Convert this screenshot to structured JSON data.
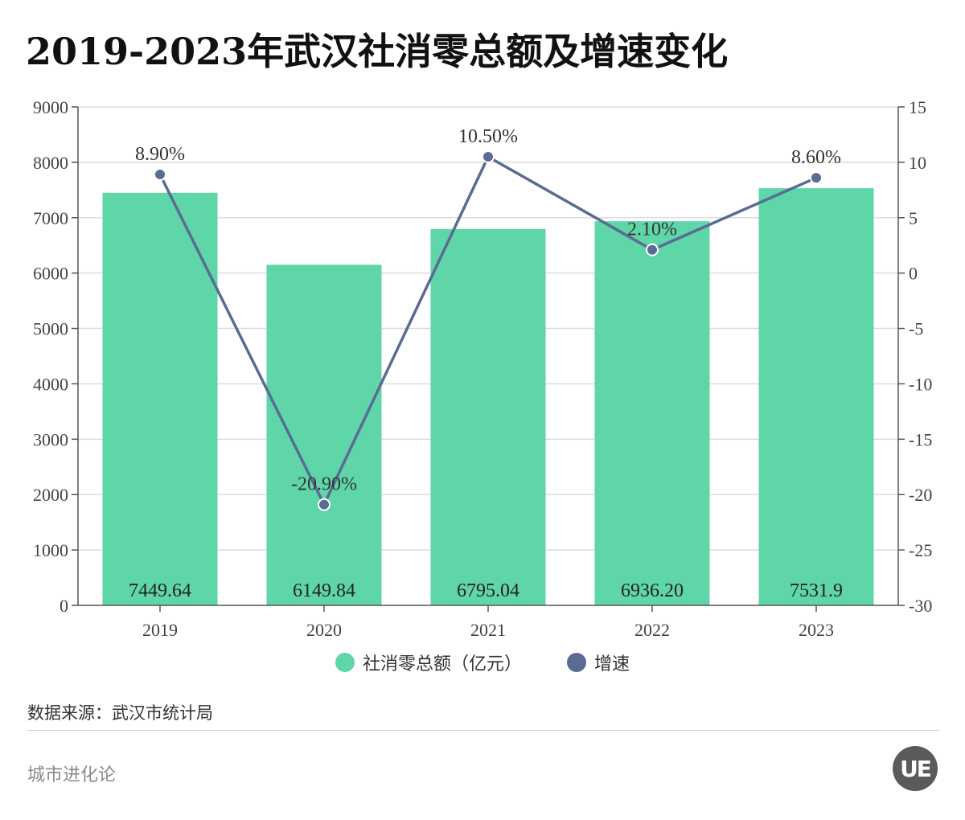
{
  "title": "2019-2023年武汉社消零总额及增速变化",
  "source": "数据来源：武汉市统计局",
  "brand": "城市进化论",
  "logo_text": "UE",
  "chart_data": {
    "type": "bar",
    "categories": [
      "2019",
      "2020",
      "2021",
      "2022",
      "2023"
    ],
    "series": [
      {
        "name": "社消零总额（亿元）",
        "type": "bar",
        "axis": "left",
        "color": "#5ed6a8",
        "values": [
          7449.64,
          6149.84,
          6795.04,
          6936.2,
          7531.9
        ],
        "labels": [
          "7449.64",
          "6149.84",
          "6795.04",
          "6936.20",
          "7531.9"
        ]
      },
      {
        "name": "增速",
        "type": "line",
        "axis": "right",
        "color": "#5a6b94",
        "values": [
          8.9,
          -20.9,
          10.5,
          2.1,
          8.6
        ],
        "labels": [
          "8.90%",
          "-20.90%",
          "10.50%",
          "2.10%",
          "8.60%"
        ]
      }
    ],
    "y_left": {
      "min": 0,
      "max": 9000,
      "ticks": [
        0,
        1000,
        2000,
        3000,
        4000,
        5000,
        6000,
        7000,
        8000,
        9000
      ]
    },
    "y_right": {
      "min": -30,
      "max": 15,
      "ticks": [
        -30,
        -25,
        -20,
        -15,
        -10,
        -5,
        0,
        5,
        10,
        15
      ]
    },
    "grid": true,
    "legend_position": "bottom"
  }
}
